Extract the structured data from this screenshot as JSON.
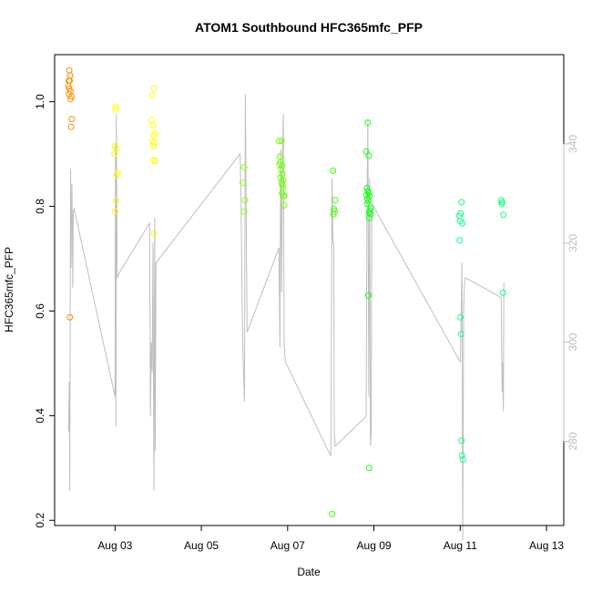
{
  "chart_data": {
    "type": "scatter",
    "title": "ATOM1 Southbound HFC365mfc_PFP",
    "xlabel": "Date",
    "ylabel": "HFC365mfc_PFP",
    "y2label": "",
    "xlim": [
      -0.4,
      11.4
    ],
    "ylim": [
      0.19,
      1.09
    ],
    "y2lim": [
      263,
      358
    ],
    "x_ticks": [
      {
        "v": 1,
        "label": "Aug 03"
      },
      {
        "v": 3,
        "label": "Aug 05"
      },
      {
        "v": 5,
        "label": "Aug 07"
      },
      {
        "v": 7,
        "label": "Aug 09"
      },
      {
        "v": 9,
        "label": "Aug 11"
      },
      {
        "v": 11,
        "label": "Aug 13"
      }
    ],
    "y_ticks": [
      {
        "v": 0.2,
        "label": "0.2"
      },
      {
        "v": 0.4,
        "label": "0.4"
      },
      {
        "v": 0.6,
        "label": "0.6"
      },
      {
        "v": 0.8,
        "label": "0.8"
      },
      {
        "v": 1.0,
        "label": "1.0"
      }
    ],
    "y2_ticks": [
      {
        "v": 280,
        "label": "280"
      },
      {
        "v": 300,
        "label": "300"
      },
      {
        "v": 320,
        "label": "320"
      },
      {
        "v": 340,
        "label": "340"
      }
    ],
    "points": [
      {
        "x": -0.06,
        "y": 1.06,
        "color": "#ff8c00"
      },
      {
        "x": -0.04,
        "y": 1.05,
        "color": "#ff8c00"
      },
      {
        "x": -0.07,
        "y": 1.04,
        "color": "#ff8c00"
      },
      {
        "x": -0.05,
        "y": 1.04,
        "color": "#ff8c00"
      },
      {
        "x": -0.08,
        "y": 1.03,
        "color": "#ff8c00"
      },
      {
        "x": -0.06,
        "y": 1.025,
        "color": "#ff8c00"
      },
      {
        "x": -0.03,
        "y": 1.02,
        "color": "#ff8c00"
      },
      {
        "x": -0.07,
        "y": 1.015,
        "color": "#ff8c00"
      },
      {
        "x": -0.01,
        "y": 1.01,
        "color": "#ff8c00"
      },
      {
        "x": -0.03,
        "y": 1.005,
        "color": "#ff8c00"
      },
      {
        "x": 0.0,
        "y": 0.967,
        "color": "#ff8c00"
      },
      {
        "x": -0.02,
        "y": 0.952,
        "color": "#ff8c00"
      },
      {
        "x": -0.05,
        "y": 0.588,
        "color": "#ff8c00"
      },
      {
        "x": 1.01,
        "y": 0.99,
        "color": "#ffff00"
      },
      {
        "x": 1.02,
        "y": 0.985,
        "color": "#ffff00"
      },
      {
        "x": 1.0,
        "y": 0.915,
        "color": "#ffff00"
      },
      {
        "x": 1.03,
        "y": 0.91,
        "color": "#ffff00"
      },
      {
        "x": 0.99,
        "y": 0.9,
        "color": "#ffff00"
      },
      {
        "x": 1.06,
        "y": 0.865,
        "color": "#ffff00"
      },
      {
        "x": 1.04,
        "y": 0.86,
        "color": "#ffff00"
      },
      {
        "x": 1.02,
        "y": 0.81,
        "color": "#ffff00"
      },
      {
        "x": 1.0,
        "y": 0.79,
        "color": "#ffff00"
      },
      {
        "x": 1.9,
        "y": 1.025,
        "color": "#ffff00"
      },
      {
        "x": 1.86,
        "y": 1.012,
        "color": "#ffff00"
      },
      {
        "x": 1.85,
        "y": 0.965,
        "color": "#ffff00"
      },
      {
        "x": 1.88,
        "y": 0.955,
        "color": "#ffff00"
      },
      {
        "x": 1.92,
        "y": 0.94,
        "color": "#ffff00"
      },
      {
        "x": 1.9,
        "y": 0.935,
        "color": "#ffff00"
      },
      {
        "x": 1.87,
        "y": 0.925,
        "color": "#ffff00"
      },
      {
        "x": 1.91,
        "y": 0.922,
        "color": "#ffff00"
      },
      {
        "x": 1.89,
        "y": 0.915,
        "color": "#ffff00"
      },
      {
        "x": 1.88,
        "y": 0.888,
        "color": "#ffff00"
      },
      {
        "x": 1.93,
        "y": 0.887,
        "color": "#ffff00"
      },
      {
        "x": 1.9,
        "y": 0.748,
        "color": "#ffff00"
      },
      {
        "x": 3.99,
        "y": 0.875,
        "color": "#9aff00"
      },
      {
        "x": 3.96,
        "y": 0.845,
        "color": "#9aff00"
      },
      {
        "x": 4.01,
        "y": 0.812,
        "color": "#9aff00"
      },
      {
        "x": 3.99,
        "y": 0.79,
        "color": "#9aff00"
      },
      {
        "x": 4.8,
        "y": 0.925,
        "color": "#6eff00"
      },
      {
        "x": 4.86,
        "y": 0.925,
        "color": "#6eff00"
      },
      {
        "x": 4.82,
        "y": 0.895,
        "color": "#6eff00"
      },
      {
        "x": 4.84,
        "y": 0.885,
        "color": "#6eff00"
      },
      {
        "x": 4.81,
        "y": 0.88,
        "color": "#6eff00"
      },
      {
        "x": 4.87,
        "y": 0.878,
        "color": "#6eff00"
      },
      {
        "x": 4.85,
        "y": 0.87,
        "color": "#6eff00"
      },
      {
        "x": 4.88,
        "y": 0.862,
        "color": "#6eff00"
      },
      {
        "x": 4.83,
        "y": 0.855,
        "color": "#6eff00"
      },
      {
        "x": 4.9,
        "y": 0.85,
        "color": "#6eff00"
      },
      {
        "x": 4.86,
        "y": 0.845,
        "color": "#6eff00"
      },
      {
        "x": 4.88,
        "y": 0.84,
        "color": "#6eff00"
      },
      {
        "x": 4.9,
        "y": 0.835,
        "color": "#6eff00"
      },
      {
        "x": 4.87,
        "y": 0.825,
        "color": "#6eff00"
      },
      {
        "x": 4.92,
        "y": 0.82,
        "color": "#6eff00"
      },
      {
        "x": 4.9,
        "y": 0.82,
        "color": "#6eff00"
      },
      {
        "x": 4.92,
        "y": 0.802,
        "color": "#6eff00"
      },
      {
        "x": 6.05,
        "y": 0.868,
        "color": "#3cff00"
      },
      {
        "x": 6.1,
        "y": 0.812,
        "color": "#3cff00"
      },
      {
        "x": 6.07,
        "y": 0.795,
        "color": "#3cff00"
      },
      {
        "x": 6.09,
        "y": 0.79,
        "color": "#3cff00"
      },
      {
        "x": 6.06,
        "y": 0.785,
        "color": "#3cff00"
      },
      {
        "x": 6.03,
        "y": 0.212,
        "color": "#3cff00"
      },
      {
        "x": 6.86,
        "y": 0.96,
        "color": "#14ff14"
      },
      {
        "x": 6.82,
        "y": 0.905,
        "color": "#14ff14"
      },
      {
        "x": 6.88,
        "y": 0.897,
        "color": "#14ff14"
      },
      {
        "x": 6.84,
        "y": 0.835,
        "color": "#14ff14"
      },
      {
        "x": 6.86,
        "y": 0.83,
        "color": "#14ff14"
      },
      {
        "x": 6.88,
        "y": 0.826,
        "color": "#14ff14"
      },
      {
        "x": 6.83,
        "y": 0.822,
        "color": "#14ff14"
      },
      {
        "x": 6.9,
        "y": 0.82,
        "color": "#14ff14"
      },
      {
        "x": 6.85,
        "y": 0.815,
        "color": "#14ff14"
      },
      {
        "x": 6.87,
        "y": 0.81,
        "color": "#14ff14"
      },
      {
        "x": 6.84,
        "y": 0.805,
        "color": "#14ff14"
      },
      {
        "x": 6.93,
        "y": 0.797,
        "color": "#14ff14"
      },
      {
        "x": 6.91,
        "y": 0.792,
        "color": "#14ff14"
      },
      {
        "x": 6.89,
        "y": 0.788,
        "color": "#14ff14"
      },
      {
        "x": 6.92,
        "y": 0.785,
        "color": "#14ff14"
      },
      {
        "x": 6.89,
        "y": 0.778,
        "color": "#14ff14"
      },
      {
        "x": 6.87,
        "y": 0.63,
        "color": "#14ff14"
      },
      {
        "x": 6.89,
        "y": 0.3,
        "color": "#14ff14"
      },
      {
        "x": 9.03,
        "y": 0.808,
        "color": "#14ff8c"
      },
      {
        "x": 9.01,
        "y": 0.787,
        "color": "#14ff8c"
      },
      {
        "x": 8.98,
        "y": 0.782,
        "color": "#14ff8c"
      },
      {
        "x": 9.0,
        "y": 0.772,
        "color": "#14ff8c"
      },
      {
        "x": 9.05,
        "y": 0.768,
        "color": "#14ff8c"
      },
      {
        "x": 8.99,
        "y": 0.735,
        "color": "#14ff8c"
      },
      {
        "x": 9.0,
        "y": 0.588,
        "color": "#14ff8c"
      },
      {
        "x": 9.02,
        "y": 0.556,
        "color": "#14ff8c"
      },
      {
        "x": 9.03,
        "y": 0.352,
        "color": "#14ff8c"
      },
      {
        "x": 9.04,
        "y": 0.324,
        "color": "#14ff8c"
      },
      {
        "x": 9.06,
        "y": 0.316,
        "color": "#14ff8c"
      },
      {
        "x": 9.95,
        "y": 0.812,
        "color": "#14ff8c"
      },
      {
        "x": 9.97,
        "y": 0.808,
        "color": "#14ff8c"
      },
      {
        "x": 9.96,
        "y": 0.805,
        "color": "#14ff8c"
      },
      {
        "x": 10.0,
        "y": 0.784,
        "color": "#14ff8c"
      },
      {
        "x": 9.99,
        "y": 0.635,
        "color": "#14ff8c"
      }
    ],
    "line_series": {
      "name": "secondary (right axis)",
      "color": "#bebebe",
      "points": [
        [
          -0.08,
          282
        ],
        [
          -0.06,
          292
        ],
        [
          -0.05,
          270
        ],
        [
          -0.03,
          335
        ],
        [
          -0.02,
          315
        ],
        [
          0.0,
          332
        ],
        [
          0.01,
          325
        ],
        [
          0.02,
          311
        ],
        [
          0.03,
          326
        ],
        [
          0.05,
          327
        ],
        [
          1.0,
          289
        ],
        [
          1.01,
          340
        ],
        [
          1.02,
          283
        ],
        [
          1.03,
          346
        ],
        [
          1.05,
          313
        ],
        [
          1.1,
          314
        ],
        [
          1.8,
          324
        ],
        [
          1.82,
          285
        ],
        [
          1.84,
          300
        ],
        [
          1.86,
          294
        ],
        [
          1.88,
          320
        ],
        [
          1.9,
          270
        ],
        [
          1.92,
          325
        ],
        [
          1.93,
          278
        ],
        [
          1.95,
          316
        ],
        [
          3.9,
          338
        ],
        [
          3.92,
          328
        ],
        [
          3.94,
          312
        ],
        [
          3.96,
          300
        ],
        [
          3.98,
          293
        ],
        [
          4.0,
          288
        ],
        [
          4.02,
          350
        ],
        [
          4.06,
          302
        ],
        [
          4.8,
          319
        ],
        [
          4.82,
          299
        ],
        [
          4.84,
          339
        ],
        [
          4.86,
          310
        ],
        [
          4.88,
          337
        ],
        [
          4.9,
          346
        ],
        [
          4.92,
          299
        ],
        [
          4.93,
          298
        ],
        [
          4.95,
          296
        ],
        [
          6.0,
          277
        ],
        [
          6.03,
          333
        ],
        [
          6.05,
          320
        ],
        [
          6.07,
          320
        ],
        [
          6.08,
          282
        ],
        [
          6.1,
          279
        ],
        [
          6.82,
          285
        ],
        [
          6.84,
          329
        ],
        [
          6.86,
          345
        ],
        [
          6.88,
          289
        ],
        [
          6.9,
          333
        ],
        [
          6.92,
          279
        ],
        [
          6.94,
          282
        ],
        [
          6.95,
          328
        ],
        [
          9.0,
          296
        ],
        [
          9.02,
          305
        ],
        [
          9.04,
          316
        ],
        [
          9.06,
          260
        ],
        [
          9.08,
          307
        ],
        [
          9.1,
          312
        ],
        [
          9.12,
          313
        ],
        [
          9.95,
          309
        ],
        [
          9.97,
          290
        ],
        [
          9.98,
          296
        ],
        [
          10.0,
          286
        ],
        [
          10.01,
          312
        ]
      ]
    }
  }
}
